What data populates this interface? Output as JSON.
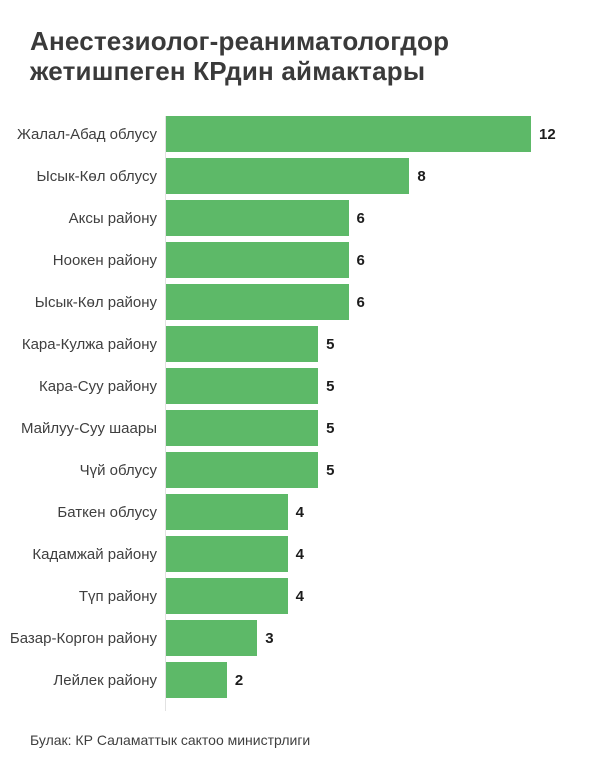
{
  "title": "Анестезиолог-реаниматологдор жетишпеген КРдин аймактары",
  "source": "Булак: КР Саламаттык сактоо министрлиги",
  "colors": {
    "bar": "#5db968",
    "title_text": "#3a3a3a",
    "label_text": "#3f3f3f",
    "value_text": "#1c1c1c",
    "axis_line": "#e2e2e2",
    "background": "#ffffff"
  },
  "chart_data": {
    "type": "bar",
    "orientation": "horizontal",
    "title": "Анестезиолог-реаниматологдор жетишпеген КРдин аймактары",
    "categories": [
      "Жалал-Абад облусу",
      "Ысык-Көл облусу",
      "Аксы району",
      "Ноокен району",
      "Ысык-Көл району",
      "Кара-Кулжа району",
      "Кара-Суу району",
      "Майлуу-Суу шаары",
      "Чүй облусу",
      "Баткен облусу",
      "Кадамжай району",
      "Түп району",
      "Базар-Коргон району",
      "Лейлек району"
    ],
    "values": [
      12,
      8,
      6,
      6,
      6,
      5,
      5,
      5,
      5,
      4,
      4,
      4,
      3,
      2
    ],
    "xlabel": "",
    "ylabel": "",
    "xlim": [
      0,
      12
    ],
    "grid": false,
    "value_labels": true,
    "legend": false
  }
}
